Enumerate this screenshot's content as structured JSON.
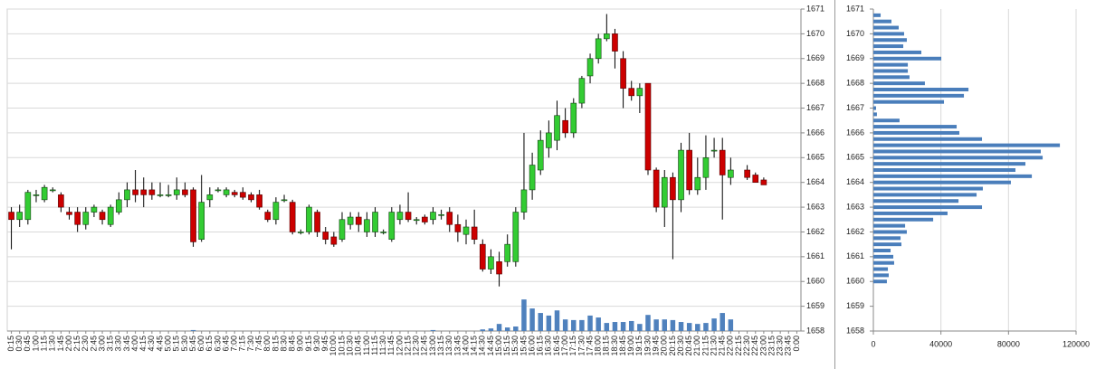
{
  "chart_data": [
    {
      "type": "candlestick",
      "categories": [
        "0:15",
        "0:30",
        "0:45",
        "1:00",
        "1:15",
        "1:30",
        "1:45",
        "2:00",
        "2:15",
        "2:30",
        "2:45",
        "3:00",
        "3:15",
        "3:30",
        "3:45",
        "4:00",
        "4:15",
        "4:30",
        "4:45",
        "5:00",
        "5:15",
        "5:30",
        "5:45",
        "6:00",
        "6:15",
        "6:30",
        "6:45",
        "7:00",
        "7:15",
        "7:30",
        "7:45",
        "8:00",
        "8:15",
        "8:30",
        "8:45",
        "9:00",
        "9:15",
        "9:30",
        "9:45",
        "10:00",
        "10:15",
        "10:30",
        "10:45",
        "11:00",
        "11:15",
        "11:30",
        "11:45",
        "12:00",
        "12:15",
        "12:30",
        "12:45",
        "13:00",
        "13:15",
        "13:30",
        "13:45",
        "14:00",
        "14:15",
        "14:30",
        "14:45",
        "15:00",
        "15:15",
        "15:30",
        "15:45",
        "16:00",
        "16:15",
        "16:30",
        "16:45",
        "17:00",
        "17:15",
        "17:30",
        "17:45",
        "18:00",
        "18:15",
        "18:30",
        "18:45",
        "19:00",
        "19:15",
        "19:30",
        "19:45",
        "20:00",
        "20:15",
        "20:30",
        "20:45",
        "21:00",
        "21:15",
        "21:30",
        "21:45",
        "22:00",
        "22:15",
        "22:30",
        "22:45",
        "23:00",
        "23:15",
        "23:30",
        "23:45",
        "0:00"
      ],
      "open": [
        1662.8,
        1662.5,
        1662.5,
        1663.5,
        1663.3,
        1663.7,
        1663.5,
        1662.8,
        1662.8,
        1662.3,
        1662.8,
        1662.8,
        1662.3,
        1662.8,
        1663.3,
        1663.7,
        1663.7,
        1663.7,
        1663.5,
        1663.5,
        1663.5,
        1663.7,
        1663.7,
        1661.7,
        1663.3,
        1663.7,
        1663.5,
        1663.6,
        1663.6,
        1663.5,
        1663.5,
        1662.8,
        1662.5,
        1663.3,
        1663.2,
        1662.0,
        1662.0,
        1662.8,
        1662.0,
        1661.8,
        1661.7,
        1662.3,
        1662.6,
        1662.0,
        1662.0,
        1662.0,
        1661.7,
        1662.5,
        1662.8,
        1662.5,
        1662.6,
        1662.5,
        1662.7,
        1662.8,
        1662.3,
        1661.9,
        1662.2,
        1661.5,
        1660.5,
        1660.8,
        1660.8,
        1660.8,
        1662.8,
        1663.7,
        1664.5,
        1665.4,
        1665.7,
        1666.5,
        1666.0,
        1667.2,
        1668.3,
        1669.0,
        1669.8,
        1670.0,
        1669.0,
        1667.8,
        1667.5,
        1668.0,
        1664.5,
        1663.0,
        1664.2,
        1663.3,
        1665.3,
        1663.7,
        1664.2,
        1665.3,
        1665.3,
        1664.2,
        null,
        1664.5,
        1664.3,
        1664.1,
        null,
        null,
        null,
        null
      ],
      "high": [
        1663.0,
        1663.1,
        1663.7,
        1663.7,
        1663.9,
        1663.8,
        1663.6,
        1663.0,
        1663.0,
        1663.0,
        1663.1,
        1662.9,
        1663.1,
        1663.6,
        1664.0,
        1664.5,
        1664.2,
        1664.0,
        1664.0,
        1663.9,
        1664.2,
        1664.0,
        1663.8,
        1664.3,
        1663.8,
        1663.8,
        1663.8,
        1663.7,
        1663.8,
        1663.6,
        1663.7,
        1662.9,
        1663.4,
        1663.5,
        1663.3,
        1662.1,
        1663.1,
        1662.9,
        1662.2,
        1662.0,
        1662.8,
        1662.8,
        1662.8,
        1662.8,
        1663.0,
        1662.1,
        1663.0,
        1663.1,
        1663.6,
        1662.6,
        1662.7,
        1663.0,
        1662.9,
        1663.0,
        1662.7,
        1662.5,
        1662.9,
        1661.7,
        1661.3,
        1661.2,
        1661.9,
        1663.0,
        1666.0,
        1665.2,
        1666.1,
        1666.5,
        1667.3,
        1667.0,
        1667.4,
        1668.3,
        1669.2,
        1670.0,
        1670.8,
        1670.2,
        1669.3,
        1668.1,
        1668.0,
        1668.0,
        1664.6,
        1664.5,
        1664.4,
        1665.6,
        1666.0,
        1665.0,
        1665.9,
        1665.8,
        1665.8,
        1665.0,
        null,
        1664.7,
        1664.4,
        1664.2,
        null,
        null,
        null,
        null
      ],
      "low": [
        1661.3,
        1662.2,
        1662.3,
        1663.2,
        1663.2,
        1663.6,
        1662.8,
        1662.5,
        1662.0,
        1662.1,
        1662.6,
        1662.3,
        1662.2,
        1662.7,
        1663.0,
        1663.2,
        1663.0,
        1663.3,
        1663.4,
        1663.4,
        1663.3,
        1663.4,
        1661.4,
        1661.6,
        1663.0,
        1663.6,
        1663.4,
        1663.4,
        1663.3,
        1663.2,
        1662.9,
        1662.4,
        1662.3,
        1663.2,
        1661.9,
        1661.9,
        1661.9,
        1661.8,
        1661.5,
        1661.4,
        1661.6,
        1662.1,
        1662.0,
        1661.8,
        1661.8,
        1661.9,
        1661.6,
        1662.3,
        1662.4,
        1662.3,
        1662.3,
        1662.3,
        1662.5,
        1662.0,
        1661.6,
        1661.5,
        1661.5,
        1660.4,
        1660.3,
        1659.8,
        1660.6,
        1660.6,
        1662.5,
        1663.3,
        1664.3,
        1665.0,
        1665.3,
        1665.8,
        1665.8,
        1667.0,
        1668.0,
        1668.8,
        1669.7,
        1668.6,
        1667.0,
        1667.3,
        1666.8,
        1664.3,
        1662.8,
        1662.2,
        1660.9,
        1662.8,
        1663.5,
        1663.5,
        1663.7,
        1665.0,
        1662.5,
        1663.9,
        null,
        1664.1,
        1664.0,
        1663.9,
        null,
        null,
        null,
        null
      ],
      "close": [
        1662.5,
        1662.8,
        1663.6,
        1663.5,
        1663.8,
        1663.7,
        1663.0,
        1662.7,
        1662.3,
        1662.8,
        1663.0,
        1662.5,
        1663.0,
        1663.3,
        1663.7,
        1663.5,
        1663.5,
        1663.5,
        1663.5,
        1663.5,
        1663.7,
        1663.5,
        1661.6,
        1663.2,
        1663.5,
        1663.7,
        1663.7,
        1663.5,
        1663.4,
        1663.3,
        1663.0,
        1662.5,
        1663.2,
        1663.3,
        1662.0,
        1662.0,
        1663.0,
        1662.0,
        1661.7,
        1661.5,
        1662.5,
        1662.6,
        1662.3,
        1662.5,
        1662.8,
        1662.0,
        1662.8,
        1662.8,
        1662.5,
        1662.5,
        1662.4,
        1662.8,
        1662.7,
        1662.3,
        1662.0,
        1662.2,
        1661.7,
        1660.5,
        1661.0,
        1660.3,
        1661.5,
        1662.8,
        1663.7,
        1664.7,
        1665.7,
        1666.0,
        1666.7,
        1666.0,
        1667.2,
        1668.2,
        1669.0,
        1669.8,
        1670.0,
        1669.3,
        1667.8,
        1667.5,
        1667.8,
        1664.5,
        1663.0,
        1664.2,
        1663.3,
        1665.3,
        1663.7,
        1664.2,
        1665.0,
        1665.3,
        1664.3,
        1664.5,
        null,
        1664.2,
        1664.0,
        1663.9,
        null,
        null,
        null,
        null
      ],
      "volume": [
        0,
        0,
        0,
        0,
        0,
        0,
        0,
        0,
        0,
        0,
        0,
        0,
        0,
        0,
        0,
        0,
        0,
        0,
        0,
        0,
        0,
        0,
        3,
        0,
        0,
        0,
        0,
        0,
        0,
        0,
        0,
        0,
        0,
        0,
        0,
        0,
        0,
        0,
        0,
        0,
        0,
        0,
        0,
        0,
        0,
        0,
        0,
        0,
        0,
        0,
        0,
        3,
        0,
        0,
        0,
        0,
        0,
        5,
        8,
        22,
        11,
        14,
        98,
        70,
        56,
        48,
        64,
        36,
        34,
        34,
        48,
        42,
        25,
        28,
        28,
        31,
        22,
        50,
        36,
        36,
        34,
        28,
        25,
        22,
        25,
        39,
        56,
        36,
        0,
        0,
        0,
        0,
        0,
        0,
        0,
        0
      ],
      "up_color": "#33cc33",
      "down_color": "#cc0000",
      "volume_color": "#4f81bd",
      "ylim": [
        1658,
        1671
      ],
      "yticks": [
        1658,
        1659,
        1660,
        1661,
        1662,
        1663,
        1664,
        1665,
        1666,
        1667,
        1668,
        1669,
        1670,
        1671
      ],
      "y2lim": [
        0,
        1000
      ],
      "grid": true
    },
    {
      "type": "hbar",
      "prices": [
        1670.75,
        1670.5,
        1670.25,
        1670.0,
        1669.75,
        1669.5,
        1669.25,
        1669.0,
        1668.75,
        1668.5,
        1668.25,
        1668.0,
        1667.75,
        1667.5,
        1667.25,
        1667.0,
        1666.75,
        1666.5,
        1666.25,
        1666.0,
        1665.75,
        1665.5,
        1665.25,
        1665.0,
        1664.75,
        1664.5,
        1664.25,
        1664.0,
        1663.75,
        1663.5,
        1663.25,
        1663.0,
        1662.75,
        1662.5,
        1662.25,
        1662.0,
        1661.75,
        1661.5,
        1661.25,
        1661.0,
        1660.75,
        1660.5,
        1660.25,
        1660.0
      ],
      "values": [
        4300,
        10700,
        15000,
        18200,
        19800,
        17700,
        28400,
        40200,
        20400,
        20400,
        21400,
        30500,
        56300,
        53600,
        41800,
        1600,
        2100,
        15500,
        49300,
        50900,
        64300,
        110400,
        99100,
        100200,
        90000,
        84100,
        93800,
        81400,
        64800,
        61100,
        50400,
        64300,
        43900,
        35400,
        18800,
        19800,
        16100,
        16600,
        10200,
        11800,
        12300,
        8600,
        9100,
        8000
      ],
      "color": "#4a7ebb",
      "xlim": [
        0,
        120000
      ],
      "xticks": [
        0,
        40000,
        80000,
        120000
      ],
      "ylim": [
        1658,
        1671
      ],
      "yticks": [
        1658,
        1659,
        1660,
        1661,
        1662,
        1663,
        1664,
        1665,
        1666,
        1667,
        1668,
        1669,
        1670,
        1671
      ],
      "grid": true
    }
  ]
}
